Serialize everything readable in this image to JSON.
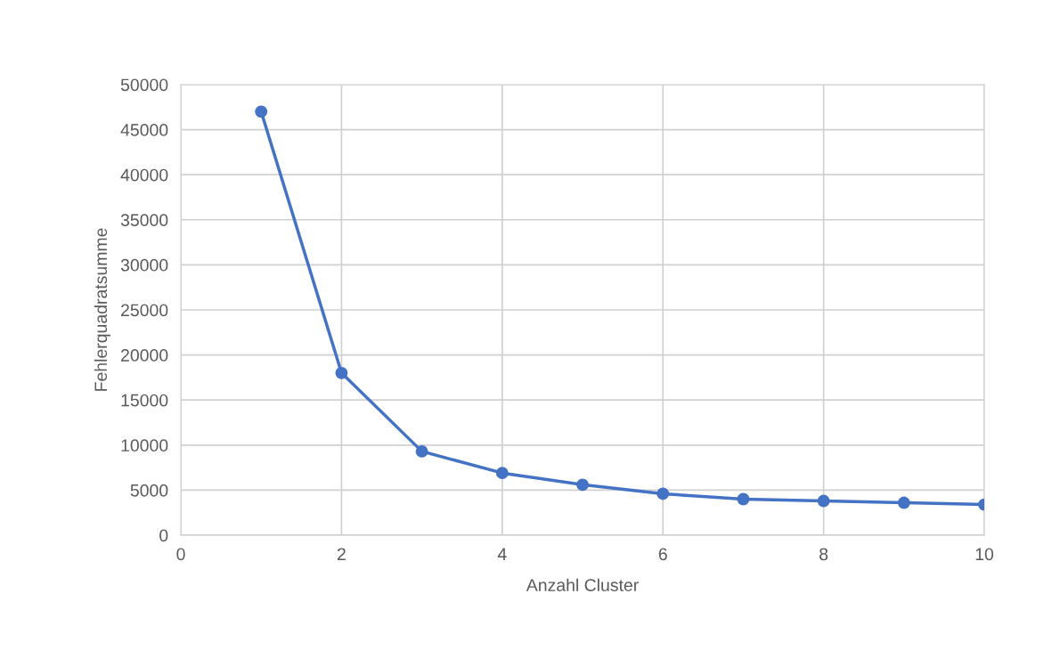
{
  "chart_data": {
    "type": "line",
    "xlabel": "Anzahl Cluster",
    "ylabel": "Fehlerquadratsumme",
    "x": [
      1,
      2,
      3,
      4,
      5,
      6,
      7,
      8,
      9,
      10
    ],
    "series": [
      {
        "color": "#4472c4",
        "values": [
          47000,
          18000,
          9300,
          6900,
          5600,
          4600,
          4000,
          3800,
          3600,
          3400
        ]
      }
    ],
    "line_style": "solid",
    "marker": "circle",
    "xlim": [
      0,
      10
    ],
    "xticks": [
      0,
      2,
      4,
      6,
      8,
      10
    ],
    "ylim": [
      0,
      50000
    ],
    "yticks": [
      0,
      5000,
      10000,
      15000,
      20000,
      25000,
      30000,
      35000,
      40000,
      45000,
      50000
    ],
    "grid": true
  }
}
